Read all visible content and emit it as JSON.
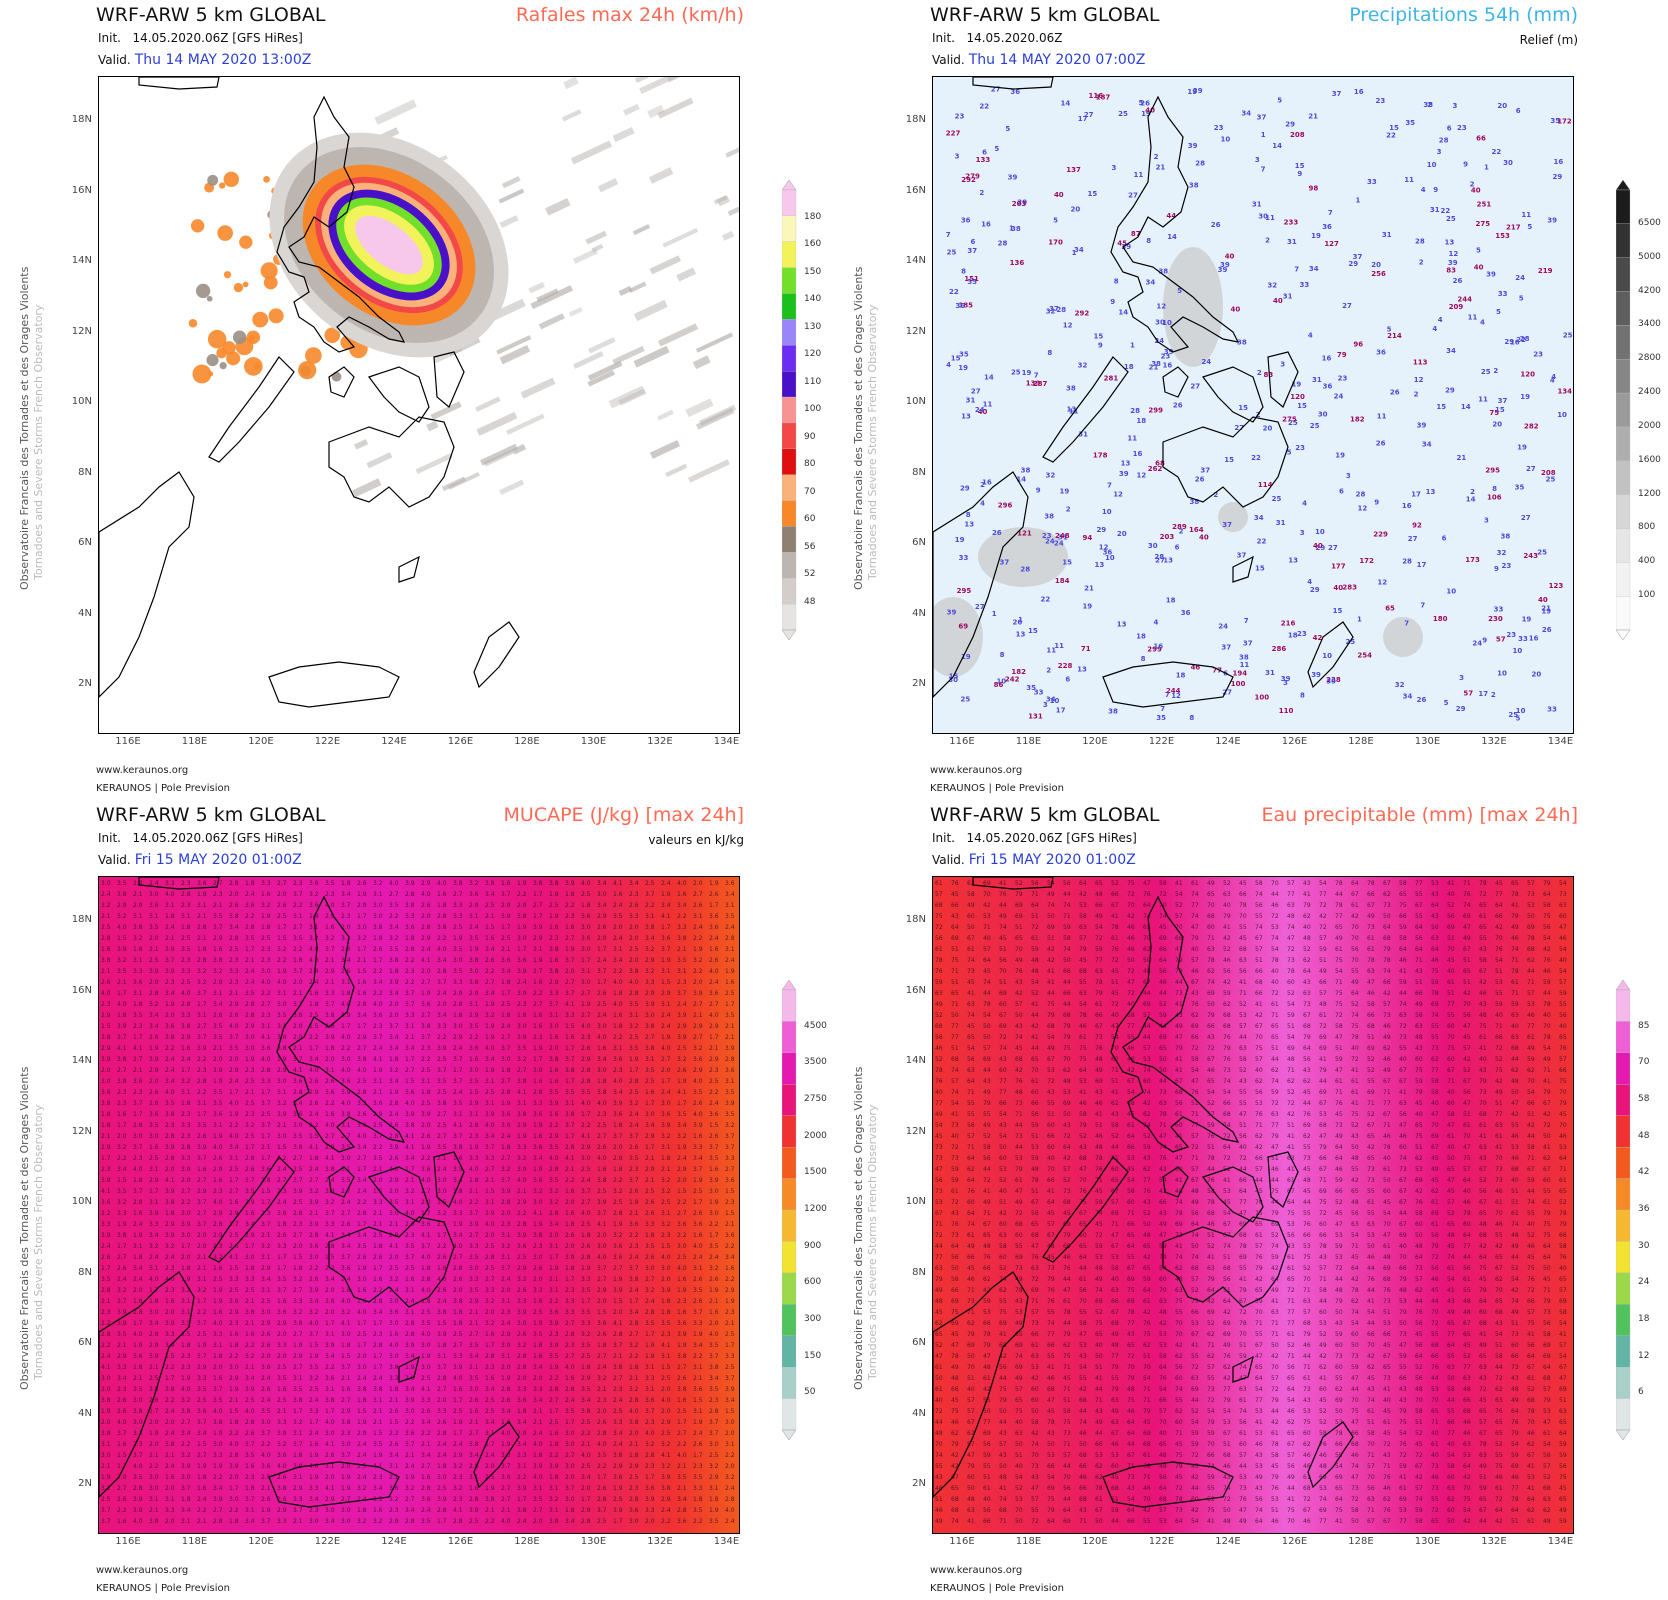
{
  "footer": {
    "site": "www.keraunos.org",
    "org": "KERAUNOS | Pole Prevision"
  },
  "sidebar": {
    "line1": "Observatoire Francais des Tornades et des Orages Violents",
    "line2": "Tornadoes and Severe Storms French Observatory"
  },
  "axes": {
    "lat_labels": [
      "18N",
      "16N",
      "14N",
      "12N",
      "10N",
      "8N",
      "6N",
      "4N",
      "2N"
    ],
    "lon_labels": [
      "116E",
      "118E",
      "120E",
      "122E",
      "124E",
      "126E",
      "128E",
      "130E",
      "132E",
      "134E"
    ]
  },
  "panels": [
    {
      "model": "WRF-ARW 5 km GLOBAL",
      "init_label": "Init.",
      "init_value": "14.05.2020.06Z [GFS HiRes]",
      "valid_label": "Valid.",
      "valid_value": "Thu 14 MAY 2020 13:00Z",
      "field_title": "Rafales max 24h (km/h)",
      "field_color": "#ff6a55",
      "units_note": "",
      "colorbar": {
        "labels": [
          "180",
          "160",
          "150",
          "140",
          "130",
          "120",
          "110",
          "100",
          "90",
          "80",
          "70",
          "60",
          "56",
          "52",
          "48"
        ],
        "colors": [
          "#f7c8ec",
          "#fbf7bb",
          "#f2f25a",
          "#72e02a",
          "#1cc01c",
          "#9b86f7",
          "#6d2cf2",
          "#4a10c8",
          "#f79393",
          "#f24848",
          "#e01010",
          "#fbb27a",
          "#f7882a",
          "#8e8174",
          "#bdb6b0",
          "#d3cecb",
          "#e6e4e2"
        ]
      },
      "field_type": "wind"
    },
    {
      "model": "WRF-ARW 5 km GLOBAL",
      "init_label": "Init.",
      "init_value": "14.05.2020.06Z",
      "valid_label": "Valid.",
      "valid_value": "Thu 14 MAY 2020 07:00Z",
      "field_title": "Precipitations 54h (mm)",
      "field_color": "#3fb4e6",
      "units_note": "Relief (m)",
      "colorbar": {
        "labels": [
          "6500",
          "5000",
          "4200",
          "3400",
          "2800",
          "2400",
          "2000",
          "1600",
          "1200",
          "800",
          "400",
          "100"
        ],
        "colors": [
          "#1c1c1c",
          "#333333",
          "#4a4a4a",
          "#5e5e5e",
          "#727272",
          "#868686",
          "#9a9a9a",
          "#aeaeae",
          "#c2c2c2",
          "#d6d6d6",
          "#e6e6e6",
          "#f2f2f2",
          "#fafafa"
        ]
      },
      "field_type": "precip"
    },
    {
      "model": "WRF-ARW 5 km GLOBAL",
      "init_label": "Init.",
      "init_value": "14.05.2020.06Z [GFS HiRes]",
      "valid_label": "Valid.",
      "valid_value": "Fri 15 MAY 2020 01:00Z",
      "field_title": "MUCAPE (J/kg) [max 24h]",
      "field_color": "#ff6a55",
      "units_note": "valeurs en kJ/kg",
      "colorbar": {
        "labels": [
          "4500",
          "3500",
          "2750",
          "2000",
          "1500",
          "1200",
          "900",
          "600",
          "300",
          "150",
          "50"
        ],
        "colors": [
          "#f5b8ea",
          "#ee5fd6",
          "#e41ab0",
          "#e8147a",
          "#f03232",
          "#f25a1e",
          "#f58a26",
          "#f5b830",
          "#f2e232",
          "#9bd84a",
          "#52c25e",
          "#62b4a4",
          "#a8cfc8",
          "#e0e6e5"
        ]
      },
      "field_type": "cape"
    },
    {
      "model": "WRF-ARW 5 km GLOBAL",
      "init_label": "Init.",
      "init_value": "14.05.2020.06Z [GFS HiRes]",
      "valid_label": "Valid.",
      "valid_value": "Fri 15 MAY 2020 01:00Z",
      "field_title": "Eau precipitable (mm) [max 24h]",
      "field_color": "#ff6a55",
      "units_note": "",
      "colorbar": {
        "labels": [
          "85",
          "70",
          "58",
          "48",
          "42",
          "36",
          "30",
          "24",
          "18",
          "12",
          "6"
        ],
        "colors": [
          "#f5b8ea",
          "#ee5fd6",
          "#e41ab0",
          "#e8147a",
          "#f03232",
          "#f25a1e",
          "#f58a26",
          "#f5b830",
          "#f2e232",
          "#9bd84a",
          "#52c25e",
          "#62b4a4",
          "#a8cfc8",
          "#e0e6e5"
        ]
      },
      "field_type": "pw"
    }
  ]
}
